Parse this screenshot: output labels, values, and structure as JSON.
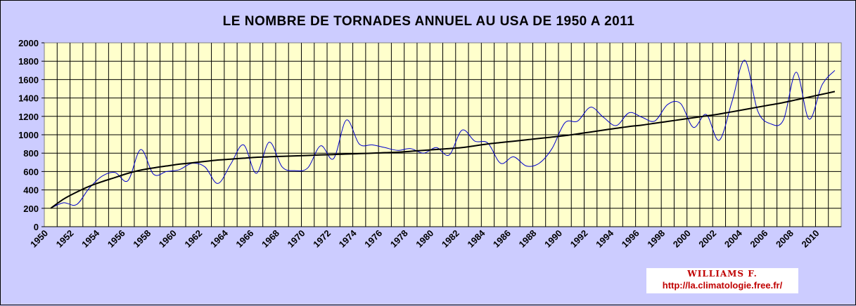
{
  "colors": {
    "background": "#ccccff",
    "plot_background": "#ffffcc",
    "grid": "#000000",
    "series_line": "#0000cc",
    "trend_line": "#000000",
    "watermark_text": "#c00000"
  },
  "watermark": {
    "author": "WILLIAMS F.",
    "url": "http://la.climatologie.free.fr/"
  },
  "chart_data": {
    "type": "line",
    "title": "LE NOMBRE DE TORNADES ANNUEL AU USA DE 1950 A 2011",
    "xlabel": "",
    "ylabel": "",
    "xlim": [
      1950,
      2012
    ],
    "ylim": [
      0,
      2000
    ],
    "y_ticks": [
      0,
      200,
      400,
      600,
      800,
      1000,
      1200,
      1400,
      1600,
      1800,
      2000
    ],
    "x_tick_labels": [
      "1950",
      "1952",
      "1954",
      "1956",
      "1958",
      "1960",
      "1962",
      "1964",
      "1966",
      "1968",
      "1970",
      "1972",
      "1974",
      "1976",
      "1978",
      "1980",
      "1982",
      "1984",
      "1986",
      "1988",
      "1990",
      "1992",
      "1994",
      "1996",
      "1998",
      "2000",
      "2002",
      "2004",
      "2006",
      "2008",
      "2010"
    ],
    "grid": true,
    "legend": "none",
    "x": [
      1950,
      1951,
      1952,
      1953,
      1954,
      1955,
      1956,
      1957,
      1958,
      1959,
      1960,
      1961,
      1962,
      1963,
      1964,
      1965,
      1966,
      1967,
      1968,
      1969,
      1970,
      1971,
      1972,
      1973,
      1974,
      1975,
      1976,
      1977,
      1978,
      1979,
      1980,
      1981,
      1982,
      1983,
      1984,
      1985,
      1986,
      1987,
      1988,
      1989,
      1990,
      1991,
      1992,
      1993,
      1994,
      1995,
      1996,
      1997,
      1998,
      1999,
      2000,
      2001,
      2002,
      2003,
      2004,
      2005,
      2006,
      2007,
      2008,
      2009,
      2010,
      2011
    ],
    "series": [
      {
        "values": [
          200,
          260,
          240,
          420,
          550,
          590,
          500,
          840,
          570,
          600,
          620,
          690,
          650,
          470,
          680,
          890,
          580,
          920,
          650,
          610,
          640,
          880,
          740,
          1160,
          900,
          890,
          860,
          830,
          850,
          800,
          860,
          780,
          1050,
          930,
          910,
          690,
          760,
          660,
          690,
          850,
          1130,
          1150,
          1300,
          1190,
          1100,
          1240,
          1190,
          1150,
          1330,
          1340,
          1080,
          1220,
          940,
          1360,
          1810,
          1260,
          1120,
          1160,
          1680,
          1170,
          1540,
          1700
        ]
      }
    ],
    "trend": {
      "values": [
        200,
        300,
        375,
        440,
        490,
        535,
        580,
        615,
        640,
        660,
        680,
        695,
        710,
        725,
        735,
        745,
        755,
        760,
        765,
        770,
        775,
        780,
        785,
        790,
        795,
        800,
        805,
        810,
        820,
        830,
        840,
        850,
        860,
        880,
        900,
        915,
        930,
        945,
        960,
        975,
        990,
        1010,
        1030,
        1050,
        1070,
        1090,
        1105,
        1125,
        1145,
        1165,
        1185,
        1205,
        1225,
        1250,
        1275,
        1300,
        1325,
        1350,
        1380,
        1410,
        1440,
        1470
      ]
    }
  }
}
